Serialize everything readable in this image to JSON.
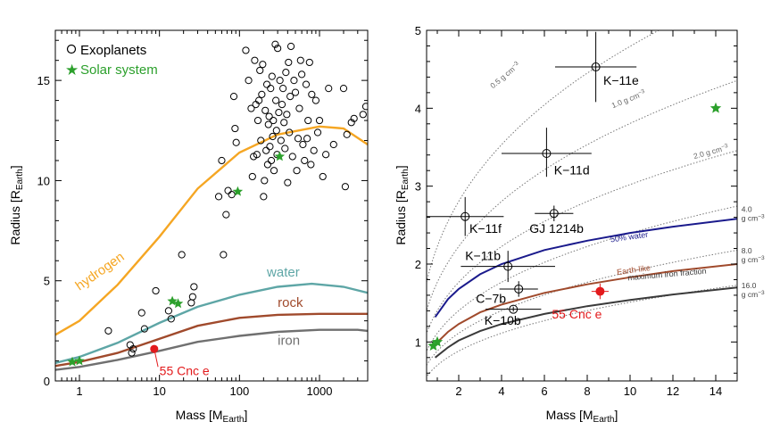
{
  "chart_data": [
    {
      "type": "scatter",
      "xlabel": "Mass [M",
      "xlabel_sub": "Earth",
      "xlabel_close": "]",
      "ylabel": "Radius [R",
      "ylabel_sub": "Earth",
      "ylabel_close": "]",
      "x_scale": "log",
      "xlim": [
        0.5,
        4000
      ],
      "ylim": [
        0,
        17.5
      ],
      "x_ticks": [
        1,
        10,
        100,
        1000
      ],
      "x_tick_labels": [
        "1",
        "10",
        "100",
        "1000"
      ],
      "y_ticks": [
        0,
        5,
        10,
        15
      ],
      "y_tick_labels": [
        "0",
        "5",
        "10",
        "15"
      ],
      "legend": [
        {
          "label": "Exoplanets",
          "marker": "open-circle",
          "color": "#000000"
        },
        {
          "label": "Solar system",
          "marker": "star",
          "color": "#2ca02c"
        }
      ],
      "legend_placement": "top-left",
      "curves": [
        {
          "name": "hydrogen",
          "color": "#f5a623",
          "points": [
            [
              0.5,
              2.3
            ],
            [
              1,
              3.0
            ],
            [
              3,
              4.8
            ],
            [
              10,
              7.2
            ],
            [
              30,
              9.6
            ],
            [
              100,
              11.4
            ],
            [
              300,
              12.3
            ],
            [
              1000,
              12.7
            ],
            [
              2000,
              12.6
            ],
            [
              4000,
              11.8
            ]
          ]
        },
        {
          "name": "water",
          "color": "#5ea6a6",
          "points": [
            [
              0.5,
              0.9
            ],
            [
              1,
              1.2
            ],
            [
              3,
              1.9
            ],
            [
              10,
              2.9
            ],
            [
              30,
              3.7
            ],
            [
              100,
              4.3
            ],
            [
              300,
              4.7
            ],
            [
              800,
              4.85
            ],
            [
              2000,
              4.7
            ],
            [
              4000,
              4.4
            ]
          ]
        },
        {
          "name": "rock",
          "color": "#a04a2c",
          "points": [
            [
              0.5,
              0.75
            ],
            [
              1,
              0.95
            ],
            [
              3,
              1.4
            ],
            [
              10,
              2.1
            ],
            [
              30,
              2.75
            ],
            [
              100,
              3.15
            ],
            [
              300,
              3.3
            ],
            [
              1000,
              3.35
            ],
            [
              4000,
              3.35
            ]
          ]
        },
        {
          "name": "iron",
          "color": "#707070",
          "points": [
            [
              0.5,
              0.55
            ],
            [
              1,
              0.7
            ],
            [
              3,
              1.05
            ],
            [
              10,
              1.5
            ],
            [
              30,
              1.95
            ],
            [
              100,
              2.25
            ],
            [
              300,
              2.45
            ],
            [
              1000,
              2.55
            ],
            [
              3000,
              2.55
            ],
            [
              4000,
              2.5
            ]
          ]
        }
      ],
      "curve_labels": [
        {
          "text": "hydrogen",
          "color": "#f5a623",
          "at": [
            1.0,
            4.5
          ],
          "angle": -35
        },
        {
          "text": "water",
          "color": "#5ea6a6",
          "at": [
            220,
            5.2
          ],
          "angle": 0
        },
        {
          "text": "rock",
          "color": "#a04a2c",
          "at": [
            300,
            3.7
          ],
          "angle": 0
        },
        {
          "text": "iron",
          "color": "#707070",
          "at": [
            300,
            1.8
          ],
          "angle": 0
        }
      ],
      "exoplanets": [
        [
          2.3,
          2.5
        ],
        [
          4.3,
          1.8
        ],
        [
          4.5,
          1.4
        ],
        [
          4.7,
          1.6
        ],
        [
          6.0,
          3.4
        ],
        [
          6.5,
          2.6
        ],
        [
          9.0,
          4.5
        ],
        [
          14,
          3.1
        ],
        [
          13,
          3.5
        ],
        [
          25,
          3.9
        ],
        [
          26,
          4.2
        ],
        [
          27,
          4.7
        ],
        [
          19,
          6.3
        ],
        [
          55,
          9.2
        ],
        [
          60,
          11.0
        ],
        [
          63,
          6.3
        ],
        [
          68,
          8.3
        ],
        [
          72,
          9.5
        ],
        [
          80,
          9.3
        ],
        [
          85,
          14.2
        ],
        [
          88,
          12.6
        ],
        [
          91,
          11.9
        ],
        [
          120,
          16.5
        ],
        [
          130,
          15.0
        ],
        [
          140,
          13.6
        ],
        [
          145,
          10.2
        ],
        [
          150,
          11.2
        ],
        [
          155,
          16.0
        ],
        [
          160,
          13.8
        ],
        [
          165,
          11.3
        ],
        [
          170,
          13.0
        ],
        [
          175,
          14.0
        ],
        [
          180,
          15.5
        ],
        [
          185,
          12.0
        ],
        [
          190,
          14.3
        ],
        [
          195,
          15.8
        ],
        [
          200,
          9.2
        ],
        [
          205,
          10.0
        ],
        [
          210,
          13.5
        ],
        [
          215,
          11.5
        ],
        [
          220,
          14.8
        ],
        [
          225,
          10.8
        ],
        [
          230,
          12.8
        ],
        [
          235,
          13.2
        ],
        [
          240,
          11.7
        ],
        [
          245,
          14.6
        ],
        [
          250,
          11.0
        ],
        [
          255,
          15.2
        ],
        [
          260,
          12.2
        ],
        [
          265,
          13.0
        ],
        [
          270,
          10.5
        ],
        [
          280,
          16.8
        ],
        [
          285,
          14.0
        ],
        [
          290,
          12.5
        ],
        [
          295,
          11.3
        ],
        [
          300,
          16.6
        ],
        [
          310,
          13.4
        ],
        [
          320,
          15.0
        ],
        [
          330,
          12.0
        ],
        [
          340,
          13.8
        ],
        [
          350,
          14.6
        ],
        [
          360,
          12.9
        ],
        [
          370,
          11.6
        ],
        [
          380,
          15.4
        ],
        [
          390,
          13.3
        ],
        [
          400,
          9.9
        ],
        [
          410,
          15.9
        ],
        [
          420,
          12.4
        ],
        [
          430,
          14.2
        ],
        [
          440,
          16.7
        ],
        [
          460,
          11.2
        ],
        [
          480,
          15.0
        ],
        [
          500,
          14.4
        ],
        [
          520,
          10.5
        ],
        [
          540,
          12.1
        ],
        [
          560,
          13.6
        ],
        [
          580,
          16.0
        ],
        [
          600,
          15.3
        ],
        [
          620,
          11.8
        ],
        [
          650,
          11.0
        ],
        [
          680,
          14.8
        ],
        [
          700,
          12.1
        ],
        [
          720,
          13.0
        ],
        [
          750,
          15.9
        ],
        [
          780,
          10.8
        ],
        [
          800,
          14.3
        ],
        [
          850,
          11.5
        ],
        [
          900,
          14.0
        ],
        [
          950,
          12.4
        ],
        [
          1000,
          13.0
        ],
        [
          1100,
          10.2
        ],
        [
          1200,
          11.3
        ],
        [
          1300,
          14.6
        ],
        [
          1500,
          11.8
        ],
        [
          2000,
          14.6
        ],
        [
          2100,
          9.7
        ],
        [
          2200,
          12.3
        ],
        [
          2500,
          12.9
        ],
        [
          2700,
          13.1
        ],
        [
          3500,
          13.3
        ],
        [
          3800,
          13.7
        ]
      ],
      "solar_system": [
        [
          0.815,
          0.95
        ],
        [
          1.0,
          1.0
        ],
        [
          14.5,
          3.98
        ],
        [
          17.1,
          3.86
        ],
        [
          95.2,
          9.45
        ],
        [
          317.8,
          11.2
        ]
      ],
      "highlight": {
        "label": "55 Cnc e",
        "color": "#e31a1c",
        "x": 8.6,
        "y": 1.6,
        "label_at": [
          10,
          0.3
        ]
      }
    },
    {
      "type": "scatter",
      "xlabel": "Mass [M",
      "xlabel_sub": "Earth",
      "xlabel_close": "]",
      "ylabel": "Radius [R",
      "ylabel_sub": "Earth",
      "ylabel_close": "]",
      "xlim": [
        0.5,
        15
      ],
      "ylim": [
        0.5,
        5
      ],
      "x_ticks": [
        2,
        4,
        6,
        8,
        10,
        12,
        14
      ],
      "x_tick_labels": [
        "2",
        "4",
        "6",
        "8",
        "10",
        "12",
        "14"
      ],
      "y_ticks": [
        1,
        2,
        3,
        4,
        5
      ],
      "y_tick_labels": [
        "1",
        "2",
        "3",
        "4",
        "5"
      ],
      "density_curves": [
        {
          "label": "0.5 g cm",
          "sup": "−3",
          "rho": 0.5,
          "label_at": [
            3.6,
            4.25
          ],
          "angle": -40
        },
        {
          "label": "1.0 g cm",
          "sup": "−3",
          "rho": 1.0,
          "label_at": [
            9.2,
            4.0
          ],
          "angle": -22
        },
        {
          "label": "2.0 g cm",
          "sup": "−3",
          "rho": 2.0,
          "label_at": [
            13.0,
            3.35
          ],
          "angle": -15
        },
        {
          "label": "4.0",
          "label2": "g cm",
          "sup": "−3",
          "rho": 4.0,
          "label_at": [
            15.2,
            2.67
          ],
          "angle": 0
        },
        {
          "label": "8.0",
          "label2": "g cm",
          "sup": "−3",
          "rho": 8.0,
          "label_at": [
            15.2,
            2.14
          ],
          "angle": 0
        },
        {
          "label": "16.0",
          "label2": "g cm",
          "sup": "−3",
          "rho": 16.0,
          "label_at": [
            15.2,
            1.69
          ],
          "angle": 0
        }
      ],
      "curves": [
        {
          "name": "50% water",
          "color": "#1a1a8c",
          "points": [
            [
              0.9,
              1.32
            ],
            [
              1.5,
              1.55
            ],
            [
              2,
              1.68
            ],
            [
              3,
              1.87
            ],
            [
              4,
              2.0
            ],
            [
              6,
              2.18
            ],
            [
              8,
              2.3
            ],
            [
              10,
              2.4
            ],
            [
              12,
              2.48
            ],
            [
              15,
              2.58
            ]
          ]
        },
        {
          "name": "Earth-like",
          "color": "#a04a2c",
          "points": [
            [
              0.9,
              0.97
            ],
            [
              1.5,
              1.13
            ],
            [
              2,
              1.23
            ],
            [
              3,
              1.38
            ],
            [
              4,
              1.48
            ],
            [
              6,
              1.63
            ],
            [
              8,
              1.74
            ],
            [
              10,
              1.83
            ],
            [
              12,
              1.91
            ],
            [
              15,
              2.0
            ]
          ]
        },
        {
          "name": "maximum iron fraction",
          "color": "#3a3a3a",
          "points": [
            [
              0.9,
              0.8
            ],
            [
              1.5,
              0.93
            ],
            [
              2,
              1.02
            ],
            [
              3,
              1.14
            ],
            [
              4,
              1.23
            ],
            [
              6,
              1.36
            ],
            [
              8,
              1.46
            ],
            [
              10,
              1.54
            ],
            [
              12,
              1.61
            ],
            [
              15,
              1.7
            ]
          ]
        }
      ],
      "curve_labels": [
        {
          "text": "50% water",
          "color": "#1a1a8c",
          "at": [
            9.1,
            2.28
          ],
          "angle": -8
        },
        {
          "text": "Earth-like",
          "color": "#a04a2c",
          "at": [
            9.4,
            1.86
          ],
          "angle": -8
        },
        {
          "text": "maximum iron fraction",
          "color": "#3a3a3a",
          "at": [
            9.9,
            1.79
          ],
          "angle": -5
        }
      ],
      "planets": [
        {
          "label": "K−11e",
          "x": 8.4,
          "y": 4.53,
          "xerr": 1.9,
          "yerr": [
            0.45,
            0.45
          ],
          "label_at": [
            8.75,
            4.3
          ]
        },
        {
          "label": "K−11d",
          "x": 6.1,
          "y": 3.42,
          "xerr": 2.1,
          "yerr": [
            0.3,
            0.33
          ],
          "label_at": [
            6.45,
            3.15
          ]
        },
        {
          "label": "K−11f",
          "x": 2.3,
          "y": 2.61,
          "xerr": 1.8,
          "yerr": [
            0.25,
            0.25
          ],
          "label_at": [
            2.5,
            2.4
          ]
        },
        {
          "label": "GJ 1214b",
          "x": 6.45,
          "y": 2.65,
          "xerr": 0.9,
          "yerr": [
            0.1,
            0.1
          ],
          "label_at": [
            5.3,
            2.4
          ]
        },
        {
          "label": "K−11b",
          "x": 4.3,
          "y": 1.97,
          "xerr": 2.2,
          "yerr": [
            0.2,
            0.2
          ],
          "label_at": [
            2.3,
            2.05
          ]
        },
        {
          "label": "C−7b",
          "x": 4.8,
          "y": 1.68,
          "xerr": 0.9,
          "yerr": [
            0.1,
            0.1
          ],
          "label_at": [
            2.8,
            1.5
          ]
        },
        {
          "label": "K−10b",
          "x": 4.55,
          "y": 1.42,
          "xerr": 1.3,
          "yerr": [
            0.03,
            0.03
          ],
          "label_at": [
            3.2,
            1.22
          ]
        }
      ],
      "solar_system": [
        [
          0.815,
          0.95
        ],
        [
          1.0,
          1.0
        ],
        [
          14.0,
          4.0
        ]
      ],
      "highlight": {
        "label": "55 Cnc e",
        "color": "#e31a1c",
        "x": 8.6,
        "y": 1.65,
        "xerr": 0.4,
        "yerr": [
          0.1,
          0.1
        ],
        "label_at": [
          6.35,
          1.3
        ]
      }
    }
  ]
}
